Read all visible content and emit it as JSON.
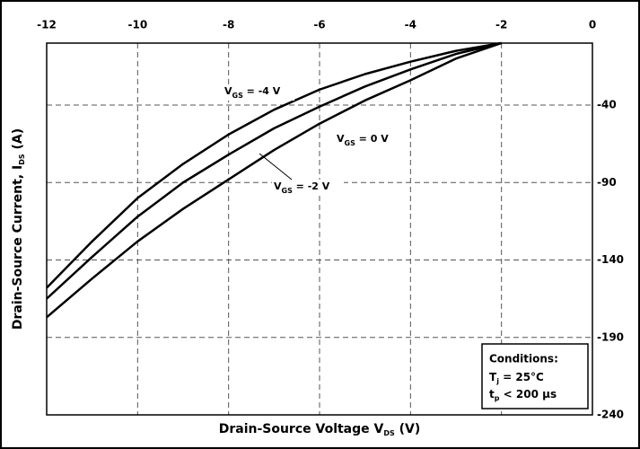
{
  "chart_data": {
    "type": "line",
    "x_label": {
      "main": "Drain-Source Voltage V",
      "sub": "DS",
      "rest": " (V)"
    },
    "y_label": {
      "main": "Drain-Source Current, I",
      "sub": "DS",
      "rest": " (A)"
    },
    "x": [
      -12,
      -11,
      -10,
      -9,
      -8,
      -7,
      -6,
      -5,
      -4,
      -3,
      -2
    ],
    "series": [
      {
        "label": {
          "main": "V",
          "sub": "GS",
          "rest": " = -4 V"
        },
        "color": "#000000",
        "values": [
          -158,
          -128,
          -100,
          -78,
          -59,
          -43,
          -30,
          -20,
          -12,
          -5,
          0
        ]
      },
      {
        "label": {
          "main": "V",
          "sub": "GS",
          "rest": " = -2 V"
        },
        "color": "#000000",
        "values": [
          -165,
          -138,
          -112,
          -90,
          -72,
          -55,
          -41,
          -28,
          -17,
          -7,
          0
        ]
      },
      {
        "label": {
          "main": "V",
          "sub": "GS",
          "rest": " = 0 V"
        },
        "color": "#000000",
        "values": [
          -177,
          -152,
          -128,
          -107,
          -88,
          -69,
          -52,
          -37,
          -24,
          -10,
          0
        ]
      }
    ],
    "xlim": [
      -12,
      0
    ],
    "xticks": [
      -12,
      -10,
      -8,
      -6,
      -4,
      -2,
      0
    ],
    "ylim": [
      -240,
      0
    ],
    "yticks": [
      -40,
      -90,
      -140,
      -190,
      -240
    ],
    "grid": true,
    "conditions": {
      "title": "Conditions:",
      "lines": [
        {
          "main": "T",
          "sub": "j",
          "rest": " = 25°C"
        },
        {
          "main": "t",
          "sub": "p",
          "rest": " < 200 µs"
        }
      ]
    }
  }
}
